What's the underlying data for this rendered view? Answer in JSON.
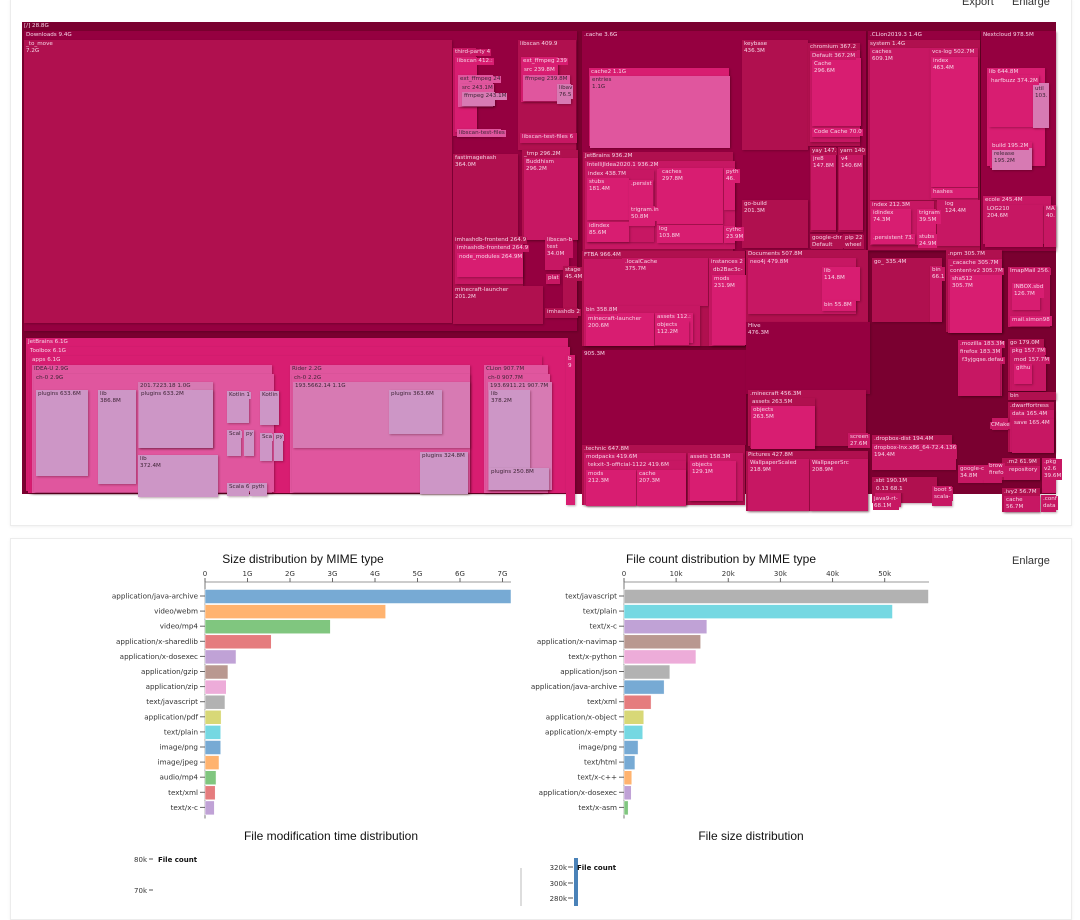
{
  "toolbar": {
    "export_label": "Export",
    "enlarge_label": "Enlarge"
  },
  "treemap": {
    "depth_colors": [
      "#7a0030",
      "#950040",
      "#b0104f",
      "#c71763",
      "#d81d71",
      "#e0569e",
      "#d77ab3",
      "#cd96c6"
    ],
    "nodes": [
      {
        "label": "[/] 28.8G",
        "depth": 0
      },
      {
        "label": "Downloads 9.4G",
        "depth": 1
      },
      {
        "label": "_to_move\n7.2G",
        "depth": 2
      },
      {
        "label": "third-party 4",
        "depth": 3
      },
      {
        "label": "libscan 412.:",
        "depth": 4
      },
      {
        "label": "ext_ffmpeg 24",
        "depth": 5
      },
      {
        "label": "src 243.1M",
        "depth": 5
      },
      {
        "label": "ffmpeg 243.1M",
        "depth": 6
      },
      {
        "label": "libscan-test-files",
        "depth": 5
      },
      {
        "label": "libscan 409.9",
        "depth": 2
      },
      {
        "label": "ext_ffmpeg 239",
        "depth": 4
      },
      {
        "label": "src 239.8M",
        "depth": 4
      },
      {
        "label": "ffmpeg 239.8M",
        "depth": 5
      },
      {
        "label": "libav\n76.5",
        "depth": 6
      },
      {
        "label": "libscan-test-files 6",
        "depth": 3
      },
      {
        "label": "fastimagehash\n364.0M",
        "depth": 2
      },
      {
        "label": "_tmp 296.2M",
        "depth": 2
      },
      {
        "label": "Buddhism\n296.2M",
        "depth": 3
      },
      {
        "label": "imhashdb-frontend 264.9",
        "depth": 2
      },
      {
        "label": "imhashdb-frontend 264.9",
        "depth": 3
      },
      {
        "label": "node_modules 264.9M",
        "depth": 4
      },
      {
        "label": "minecraft-launcher\n201.2M",
        "depth": 2
      },
      {
        "label": "libscan-b\ntest\n34.0M",
        "depth": 3
      },
      {
        "label": "stage\n45.4M",
        "depth": 2
      },
      {
        "label": "plat",
        "depth": 3
      },
      {
        "label": "imhashdb 2",
        "depth": 2
      },
      {
        "label": ".cache 3.6G",
        "depth": 1
      },
      {
        "label": "cache2 1.1G",
        "depth": 4
      },
      {
        "label": "entries\n1.1G",
        "depth": 5
      },
      {
        "label": "keybase\n436.3M",
        "depth": 2
      },
      {
        "label": "chromium 367.2",
        "depth": 2
      },
      {
        "label": "Default 367.2M",
        "depth": 3
      },
      {
        "label": "Cache\n296.6M",
        "depth": 4
      },
      {
        "label": "Code Cache 70.0",
        "depth": 4
      },
      {
        "label": "yay 147.",
        "depth": 2
      },
      {
        "label": "jre8\n147.8M",
        "depth": 3
      },
      {
        "label": "yarn 140",
        "depth": 2
      },
      {
        "label": "v4\n140.6M",
        "depth": 3
      },
      {
        "label": "go-build\n201.3M",
        "depth": 2
      },
      {
        "label": "google-chr\nDefault",
        "depth": 2
      },
      {
        "label": "pip 22\nwheel",
        "depth": 2
      },
      {
        "label": "JetBrains 936.2M",
        "depth": 2
      },
      {
        "label": "IntelliJIdea2020.1 936.2M",
        "depth": 3
      },
      {
        "label": "index 438.7M",
        "depth": 3
      },
      {
        "label": "stubs\n181.4M",
        "depth": 4
      },
      {
        "label": "idindex\n85.6M",
        "depth": 4
      },
      {
        "label": ".persist",
        "depth": 4
      },
      {
        "label": "trigram.in\n50.8M",
        "depth": 4
      },
      {
        "label": "caches\n297.8M",
        "depth": 4
      },
      {
        "label": "log\n103.8M",
        "depth": 4
      },
      {
        "label": "pyth\n46.",
        "depth": 4
      },
      {
        "label": "cythc\n23.9M",
        "depth": 4
      },
      {
        "label": ".CLion2019.3 1.4G",
        "depth": 1
      },
      {
        "label": "system 1.4G",
        "depth": 2
      },
      {
        "label": "caches\n609.1M",
        "depth": 3
      },
      {
        "label": "vcs-log 502.7M",
        "depth": 3
      },
      {
        "label": "index\n463.4M",
        "depth": 4
      },
      {
        "label": "hashes",
        "depth": 4
      },
      {
        "label": "index 212.3M",
        "depth": 3
      },
      {
        "label": "idindex\n74.3M",
        "depth": 4
      },
      {
        "label": "trigram\n39.5M",
        "depth": 4
      },
      {
        "label": "stubs\n24.9M",
        "depth": 4
      },
      {
        "label": ".persistent 73.",
        "depth": 4
      },
      {
        "label": "log\n124.4M",
        "depth": 3
      },
      {
        "label": "Nextcloud 978.5M",
        "depth": 1
      },
      {
        "label": "lib 644.8M",
        "depth": 4
      },
      {
        "label": "harfbuzz 374.2M",
        "depth": 4
      },
      {
        "label": "util\n103.",
        "depth": 6
      },
      {
        "label": "build 195.2M",
        "depth": 4
      },
      {
        "label": "release\n195.2M",
        "depth": 6
      },
      {
        "label": "ecole 245.4M",
        "depth": 3
      },
      {
        "label": "LOG210\n204.6M",
        "depth": 3
      },
      {
        "label": "MA\n40.",
        "depth": 3
      },
      {
        "label": "FTBA 966.4M",
        "depth": 2
      },
      {
        "label": ".localCache\n375.7M",
        "depth": 3
      },
      {
        "label": "instances 2",
        "depth": 3
      },
      {
        "label": "db2Bac3c-",
        "depth": 3
      },
      {
        "label": "mods\n231.9M",
        "depth": 4
      },
      {
        "label": "bin 358.8M",
        "depth": 3
      },
      {
        "label": "minecraft-launcher\n200.6M",
        "depth": 4
      },
      {
        "label": "assets 112.:",
        "depth": 4
      },
      {
        "label": "objects\n112.2M",
        "depth": 4
      },
      {
        "label": "905.3M",
        "depth": 1
      },
      {
        "label": ".technic 647.8M",
        "depth": 2
      },
      {
        "label": "modpacks 419.6M",
        "depth": 3
      },
      {
        "label": "tekxit-3-official-1122 419.6M",
        "depth": 3
      },
      {
        "label": "mods\n212.3M",
        "depth": 4
      },
      {
        "label": "cache\n207.3M",
        "depth": 4
      },
      {
        "label": "assets 158.3M",
        "depth": 3
      },
      {
        "label": "objects\n129.1M",
        "depth": 4
      },
      {
        "label": "Documents 507.8M",
        "depth": 2
      },
      {
        "label": "neo4j 479.8M",
        "depth": 3
      },
      {
        "label": "lib\n114.8M",
        "depth": 4
      },
      {
        "label": "bin 55.8M",
        "depth": 4
      },
      {
        "label": "Hive\n476.3M",
        "depth": 1
      },
      {
        "label": ".minecraft 456.3M",
        "depth": 2
      },
      {
        "label": "assets 263.5M",
        "depth": 2
      },
      {
        "label": "objects\n263.5M",
        "depth": 4
      },
      {
        "label": "screen\n27.6M",
        "depth": 3
      },
      {
        "label": "Pictures 427.8M",
        "depth": 2
      },
      {
        "label": "WallpaperScaled\n218.9M",
        "depth": 3
      },
      {
        "label": "WallpaperSrc\n208.9M",
        "depth": 3
      },
      {
        "label": "go_ 335.4M",
        "depth": 2
      },
      {
        "label": "bin\n66.1",
        "depth": 3
      },
      {
        "label": ".npm 305.7M",
        "depth": 2
      },
      {
        "label": "_cacache 305.7M",
        "depth": 3
      },
      {
        "label": "content-v2 305.7M",
        "depth": 3
      },
      {
        "label": "sha512\n305.7M",
        "depth": 4
      },
      {
        "label": "ImapMail 256.",
        "depth": 3
      },
      {
        "label": "INBOX.sbd\n126.7M",
        "depth": 4
      },
      {
        "label": "mail.simon98",
        "depth": 4
      },
      {
        "label": ".mozilla 183.3M",
        "depth": 3
      },
      {
        "label": "firefox 183.3M",
        "depth": 3
      },
      {
        "label": "f3yjgqse.defau",
        "depth": 3
      },
      {
        "label": "go 179.0M",
        "depth": 2
      },
      {
        "label": "pkg 157.7M",
        "depth": 3
      },
      {
        "label": "mod 157.7M",
        "depth": 3
      },
      {
        "label": "githu",
        "depth": 4
      },
      {
        "label": "bin",
        "depth": 2
      },
      {
        "label": ".dwarffortress",
        "depth": 2
      },
      {
        "label": "data 165.4M",
        "depth": 3
      },
      {
        "label": "save 165.4M",
        "depth": 3
      },
      {
        "label": "CMake",
        "depth": 3
      },
      {
        "label": ".dropbox-dist 194.4M",
        "depth": 2
      },
      {
        "label": "dropbox-lnx.x86_64-72.4.136\n194.4M",
        "depth": 3
      },
      {
        "label": ".sbt 190.1M",
        "depth": 2
      },
      {
        "label": "0.13 68.1",
        "depth": 2
      },
      {
        "label": "java9-rt-\n68.1M",
        "depth": 3
      },
      {
        "label": "boot 5\nscala-",
        "depth": 3
      },
      {
        "label": "google-c\n34.8M",
        "depth": 3
      },
      {
        "label": "brow\nfirefo",
        "depth": 3
      },
      {
        "label": ".m2 61.9M",
        "depth": 2
      },
      {
        "label": "repository",
        "depth": 3
      },
      {
        "label": ".pkg\nv2.6\n39.6M",
        "depth": 3
      },
      {
        "label": ".ivy2 56.7M",
        "depth": 2
      },
      {
        "label": "cache\n56.7M",
        "depth": 3
      },
      {
        "label": ".conf\ndata",
        "depth": 3
      },
      {
        "label": "JetBrains 6.1G",
        "depth": 4
      },
      {
        "label": "Toolbox 6.1G",
        "depth": 4
      },
      {
        "label": "apps 6.1G",
        "depth": 4
      },
      {
        "label": "IDEA-U 2.9G",
        "depth": 5
      },
      {
        "label": "ch-0 2.9G",
        "depth": 5
      },
      {
        "label": "plugins 633.6M",
        "depth": 7
      },
      {
        "label": "lib\n386.8M",
        "depth": 7
      },
      {
        "label": "201.7223.18 1.0G",
        "depth": 6
      },
      {
        "label": "plugins 633.2M",
        "depth": 7
      },
      {
        "label": "lib\n372.4M",
        "depth": 7
      },
      {
        "label": "Kotlin 1",
        "depth": 7
      },
      {
        "label": "Kotlin",
        "depth": 7
      },
      {
        "label": "Scal",
        "depth": 7
      },
      {
        "label": "py",
        "depth": 7
      },
      {
        "label": "Sca",
        "depth": 7
      },
      {
        "label": "py",
        "depth": 7
      },
      {
        "label": "Scala 6",
        "depth": 7
      },
      {
        "label": "pyth",
        "depth": 7
      },
      {
        "label": "Rider 2.2G",
        "depth": 5
      },
      {
        "label": "ch-0 2.2G",
        "depth": 5
      },
      {
        "label": "193.5662.14 1.1G",
        "depth": 6
      },
      {
        "label": "plugins 363.6M",
        "depth": 7
      },
      {
        "label": "plugins 324.8M",
        "depth": 7
      },
      {
        "label": "CLion 907.7M",
        "depth": 5
      },
      {
        "label": "ch-0 907.7M",
        "depth": 5
      },
      {
        "label": "193.6911.21 907.7M",
        "depth": 6
      },
      {
        "label": "lib\n378.2M",
        "depth": 7
      },
      {
        "label": "plugins 250.8M",
        "depth": 7
      },
      {
        "label": "b\n9",
        "depth": 4
      }
    ]
  },
  "chart_data": [
    {
      "type": "bar",
      "orientation": "horizontal",
      "title": "Size distribution by MIME type",
      "xlim": [
        0,
        7.2
      ],
      "x_ticks": [
        "0",
        "1G",
        "2G",
        "3G",
        "4G",
        "5G",
        "6G",
        "7G"
      ],
      "unit": "G",
      "categories": [
        "application/java-archive",
        "video/webm",
        "video/mp4",
        "application/x-sharedlib",
        "application/x-dosexec",
        "application/gzip",
        "application/zip",
        "text/javascript",
        "application/pdf",
        "text/plain",
        "image/png",
        "image/jpeg",
        "audio/mp4",
        "text/xml",
        "text/x-c"
      ],
      "values": [
        7.2,
        4.25,
        2.95,
        1.56,
        0.73,
        0.54,
        0.5,
        0.47,
        0.38,
        0.37,
        0.37,
        0.33,
        0.26,
        0.24,
        0.22
      ],
      "colors": [
        "#77aad4",
        "#ffb36f",
        "#80c67f",
        "#e57c7e",
        "#c0a2d6",
        "#b99890",
        "#edacd9",
        "#b2b2b2",
        "#d8d877",
        "#75d8e2",
        "#77aad4",
        "#ffb36f",
        "#80c67f",
        "#e57c7e",
        "#c0a2d6"
      ]
    },
    {
      "type": "bar",
      "orientation": "horizontal",
      "title": "File count distribution by MIME type",
      "xlim": [
        0,
        58.5
      ],
      "x_ticks": [
        "0",
        "10k",
        "20k",
        "30k",
        "40k",
        "50k"
      ],
      "unit": "k",
      "categories": [
        "text/javascript",
        "text/plain",
        "text/x-c",
        "application/x-navimap",
        "text/x-python",
        "application/json",
        "application/java-archive",
        "text/xml",
        "application/x-object",
        "application/x-empty",
        "image/png",
        "text/html",
        "text/x-c++",
        "application/x-dosexec",
        "text/x-asm"
      ],
      "values": [
        58.4,
        51.5,
        15.9,
        14.7,
        13.8,
        8.8,
        7.7,
        5.2,
        3.8,
        3.6,
        2.7,
        2.1,
        1.5,
        1.4,
        0.8
      ],
      "colors": [
        "#b2b2b2",
        "#75d8e2",
        "#c0a2d6",
        "#b99890",
        "#edacd9",
        "#b2b2b2",
        "#77aad4",
        "#e57c7e",
        "#d8d877",
        "#75d8e2",
        "#77aad4",
        "#77aad4",
        "#ffb36f",
        "#c0a2d6",
        "#80c67f"
      ]
    },
    {
      "type": "bar",
      "title": "File modification time distribution",
      "ylabel": "File count",
      "y_ticks": [
        "80k",
        "70k"
      ]
    },
    {
      "type": "bar",
      "title": "File size distribution",
      "ylabel": "File count",
      "y_ticks": [
        "320k",
        "300k",
        "280k"
      ]
    }
  ]
}
